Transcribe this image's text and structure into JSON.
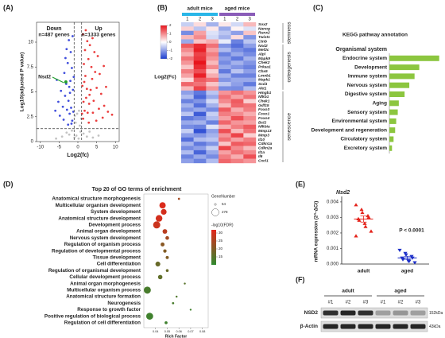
{
  "chart_data": [
    {
      "type": "scatter",
      "panel": "(A)",
      "xlabel": "Log2(fc)",
      "ylabel": "Log10(adjusted P value)",
      "xlim": [
        -11,
        11
      ],
      "ylim": [
        0,
        12
      ],
      "xticks": [
        -10,
        -5,
        0,
        5,
        10
      ],
      "yticks": [
        0,
        2.5,
        5,
        7.5,
        10
      ],
      "down_label": "Down",
      "down_count": "n=487 genes",
      "up_label": "Up",
      "up_count": "n=1333 genes",
      "hline": 1.3,
      "vlines": [
        -1,
        1
      ],
      "highlight": {
        "label": "Nsd2",
        "x": -3.2,
        "y": 6.0,
        "color": "#22a02a"
      },
      "series": [
        {
          "color": "#b8b8b8",
          "x": [
            0.2,
            -0.4,
            0.7,
            -0.9,
            1.5,
            -1.6,
            2.4,
            -2.3,
            0.5,
            -0.6,
            3.1,
            -3.0,
            0.9,
            -0.8,
            4.0,
            -4.2,
            0.3,
            -0.2,
            5.5,
            -5.8
          ],
          "values": [
            0.3,
            0.6,
            1.0,
            0.4,
            0.8,
            1.1,
            0.5,
            0.7,
            1.6,
            1.9,
            1.0,
            0.9,
            2.3,
            2.6,
            0.4,
            0.5,
            3.1,
            2.8,
            0.6,
            0.3
          ]
        },
        {
          "color": "#1f2fd6",
          "x": [
            -1.5,
            -1.8,
            -2.2,
            -2.5,
            -1.3,
            -2.9,
            -3.4,
            -2.0,
            -1.6,
            -3.1,
            -4.0,
            -2.7,
            -1.9,
            -3.6,
            -4.5,
            -1.4,
            -2.4,
            -5.2,
            -3.0,
            -1.2,
            -2.1,
            -4.8,
            -6.0,
            -1.7,
            -3.8,
            -2.6,
            -1.1,
            -5.6,
            -3.3,
            -2.3
          ],
          "values": [
            2.1,
            3.4,
            2.8,
            4.1,
            5.2,
            3.2,
            4.6,
            6.1,
            7.4,
            5.8,
            3.5,
            7.9,
            9.0,
            6.9,
            5.1,
            10.6,
            10.2,
            4.0,
            9.3,
            3.0,
            4.9,
            2.6,
            3.1,
            1.8,
            2.2,
            1.7,
            6.5,
            6.2,
            8.4,
            5.5
          ]
        },
        {
          "color": "#e81c1c",
          "x": [
            1.4,
            1.8,
            2.2,
            2.6,
            1.2,
            3.0,
            3.4,
            2.0,
            1.6,
            3.8,
            4.2,
            2.8,
            1.9,
            4.6,
            5.0,
            1.3,
            2.5,
            5.6,
            3.2,
            1.1,
            6.2,
            7.0,
            2.4,
            3.6,
            4.4,
            5.8,
            1.5,
            2.9,
            6.6,
            8.0,
            4.9,
            3.9,
            2.1,
            1.7,
            7.5,
            5.3,
            9.1,
            6.9,
            3.1,
            4.0
          ],
          "values": [
            2.3,
            3.1,
            4.4,
            2.9,
            5.6,
            3.8,
            5.2,
            6.6,
            7.8,
            6.3,
            4.1,
            8.3,
            9.2,
            7.0,
            5.4,
            10.8,
            10.1,
            3.3,
            9.7,
            2.8,
            4.8,
            3.6,
            5.3,
            7.5,
            9.0,
            6.8,
            4.0,
            1.9,
            2.4,
            3.0,
            2.1,
            10.4,
            11.2,
            6.0,
            5.5,
            8.6,
            2.7,
            7.6,
            4.7,
            2.9
          ]
        }
      ]
    },
    {
      "type": "heatmap",
      "panel": "(B)",
      "legend_title": "Log2(Fc)",
      "vlim": [
        -2,
        2
      ],
      "vticks": [
        2,
        1,
        0,
        -1,
        -2
      ],
      "colors": [
        "#1c3fd0",
        "#ffffff",
        "#e8141c"
      ],
      "column_groups": [
        {
          "name": "adult mice",
          "color": "#29b6e8",
          "columns": [
            "1",
            "2",
            "3"
          ]
        },
        {
          "name": "aged mice",
          "color": "#8a5cb8",
          "columns": [
            "1",
            "2",
            "3"
          ]
        }
      ],
      "row_groups": [
        {
          "name": "stemness",
          "color": "#a0824a",
          "label_color": "#c29a42",
          "genes": [
            "Sox2",
            "Nanog",
            "Runx2",
            "Twist1",
            "Ctnb"
          ],
          "values": [
            [
              -0.5,
              0.3,
              -0.8,
              0.2,
              -0.4,
              0.6
            ],
            [
              0.4,
              -0.6,
              0.2,
              -0.9,
              0.1,
              -0.3
            ],
            [
              -1.2,
              0.8,
              -0.3,
              -0.6,
              -1.0,
              0.5
            ],
            [
              0.6,
              1.0,
              -0.4,
              -0.8,
              0.3,
              -1.1
            ],
            [
              -0.9,
              0.5,
              0.7,
              -0.2,
              -1.3,
              -0.6
            ]
          ]
        },
        {
          "name": "osteogenesis",
          "color": "#e07090",
          "label_color": "#2b4f8a",
          "genes": [
            "Nsd2",
            "Mef2c",
            "Alpl",
            "Mapk9",
            "Chek2",
            "Prkaa1",
            "Cbx5",
            "Lmnb1",
            "Mapk1",
            "Scd1",
            "Akt1"
          ],
          "values": [
            [
              1.4,
              1.8,
              1.2,
              -1.1,
              -1.5,
              -1.0
            ],
            [
              1.0,
              1.9,
              0.8,
              -0.7,
              -1.2,
              -1.4
            ],
            [
              0.7,
              1.6,
              1.1,
              -1.3,
              -0.9,
              -1.2
            ],
            [
              1.2,
              1.7,
              0.9,
              -1.0,
              -1.4,
              -0.8
            ],
            [
              0.9,
              2.0,
              0.6,
              -1.2,
              -0.8,
              -1.1
            ],
            [
              0.5,
              1.8,
              1.0,
              -0.9,
              -1.1,
              -1.3
            ],
            [
              1.1,
              1.5,
              0.4,
              -1.4,
              -0.6,
              -1.0
            ],
            [
              0.8,
              1.9,
              0.7,
              -0.8,
              -1.3,
              -1.3
            ],
            [
              0.3,
              1.4,
              1.2,
              -1.1,
              -0.9,
              -0.9
            ],
            [
              1.3,
              1.2,
              0.5,
              -0.6,
              -1.0,
              -1.4
            ],
            [
              0.6,
              1.6,
              0.9,
              -1.2,
              -1.2,
              -0.7
            ]
          ]
        },
        {
          "name": "senescence",
          "color": "#3a6a9a",
          "label_color": "#2b4f8a",
          "genes": [
            "Hmgb1",
            "Nfkb1",
            "Chek1",
            "Gdf15",
            "Foxo3",
            "Foxo1",
            "Foxo4",
            "Bcl2",
            "Nfkbia",
            "Mmp13",
            "Mmp3",
            "Il10",
            "Cdkn1a",
            "Cdkn2a",
            "Il1a",
            "Il6",
            "Cxcl1"
          ],
          "values": [
            [
              -1.0,
              -1.4,
              -0.6,
              0.9,
              1.2,
              0.9
            ],
            [
              -0.7,
              -1.6,
              -0.9,
              1.2,
              0.8,
              1.2
            ],
            [
              -1.3,
              -1.1,
              -0.4,
              1.0,
              1.4,
              0.4
            ],
            [
              -0.8,
              -1.5,
              -0.8,
              0.6,
              1.3,
              1.2
            ],
            [
              -1.1,
              -0.9,
              -1.2,
              1.4,
              0.7,
              1.1
            ],
            [
              -0.6,
              -1.7,
              -0.5,
              1.1,
              1.0,
              0.7
            ],
            [
              -1.4,
              -1.2,
              -0.7,
              0.8,
              1.5,
              1.0
            ],
            [
              -0.9,
              -0.8,
              -1.3,
              1.3,
              0.9,
              0.8
            ],
            [
              -1.2,
              -1.3,
              -0.3,
              0.7,
              1.1,
              1.4
            ],
            [
              -0.5,
              -1.8,
              -1.0,
              1.5,
              0.6,
              1.2
            ],
            [
              -1.0,
              -1.1,
              -0.8,
              0.9,
              1.6,
              0.4
            ],
            [
              -1.5,
              -0.7,
              -0.6,
              1.2,
              0.8,
              1.1
            ],
            [
              -0.8,
              -1.4,
              -1.1,
              0.5,
              1.4,
              1.3
            ],
            [
              -1.2,
              -1.0,
              -0.5,
              1.6,
              1.0,
              0.6
            ],
            [
              -0.7,
              -1.6,
              -0.9,
              0.8,
              1.2,
              1.0
            ],
            [
              -1.3,
              -0.9,
              -1.2,
              1.1,
              0.7,
              1.5
            ],
            [
              -1.0,
              -1.3,
              -0.7,
              1.3,
              1.1,
              0.9
            ]
          ]
        }
      ]
    },
    {
      "type": "bar",
      "orientation": "horizontal",
      "panel": "(C)",
      "title": "KEGG pathway annotation",
      "color": "#8cc63f",
      "xlim": [
        0,
        100
      ],
      "categories": [
        "Organismal system",
        "Endocrine system",
        "Development",
        "Immune system",
        "Nervous system",
        "Digestive system",
        "Aging",
        "Sensory system",
        "Environmental system",
        "Development and regeneration",
        "Circulatory system",
        "Excretory system"
      ],
      "values": [
        null,
        95,
        57,
        48,
        38,
        29,
        18,
        16,
        13,
        11,
        8,
        5
      ],
      "label_colors": [
        "#b5651d",
        "#222222",
        "#e01b1b",
        "#222222",
        "#222222",
        "#e01b1b",
        "#e01b1b",
        "#222222",
        "#222222",
        "#e01b1b",
        "#222222",
        "#222222"
      ]
    },
    {
      "type": "dot",
      "panel": "(D)",
      "title": "Top 20 of GO terms of enrichment",
      "xlabel": "Rich Factor",
      "xlim": [
        0.03,
        0.085
      ],
      "xticks": [
        0.04,
        0.05,
        0.06,
        0.07,
        0.08
      ],
      "categories": [
        "Anatomical structure morphogenesis",
        "Multicellular organism development",
        "System development",
        "Anatomical structure development",
        "Development process",
        "Animal organ development",
        "Nervous system development",
        "Regulation of organism process",
        "Regulation of developmental process",
        "Tissue development",
        "Cell differentiation",
        "Regulation of organismal development",
        "Cellular development process",
        "Animal organ morphogenesis",
        "Multicellular organism process",
        "Anatomical structure formation",
        "Neurogenesis",
        "Response to growth factor",
        "Positive regulation of biological process",
        "Regulation of cell differentiation"
      ],
      "label_colors": [
        "#111111",
        "#111111",
        "#e01b1b",
        "#111111",
        "#e01b1b",
        "#e01b1b",
        "#111111",
        "#111111",
        "#111111",
        "#e01b1b",
        "#e01b1b",
        "#111111",
        "#111111",
        "#111111",
        "#111111",
        "#111111",
        "#111111",
        "#111111",
        "#111111",
        "#e01b1b"
      ],
      "values": [
        0.06,
        0.046,
        0.047,
        0.043,
        0.041,
        0.048,
        0.05,
        0.046,
        0.048,
        0.05,
        0.042,
        0.05,
        0.044,
        0.065,
        0.033,
        0.058,
        0.055,
        0.07,
        0.035,
        0.049
      ],
      "sizes": [
        60,
        230,
        200,
        250,
        278,
        150,
        110,
        120,
        100,
        90,
        160,
        80,
        140,
        54,
        270,
        56,
        62,
        54,
        265,
        85
      ],
      "fdr": [
        24,
        31,
        30,
        30,
        29,
        27,
        24,
        21,
        20,
        20,
        17,
        17,
        16,
        15,
        13,
        14,
        13,
        12,
        12,
        12
      ],
      "size_title": "GeneNumber",
      "size_ticks": [
        54,
        278
      ],
      "color_title": "-log10(FDR)",
      "clim": [
        10,
        32
      ],
      "cticks": [
        30,
        25,
        20,
        15
      ],
      "colors": [
        "#2f8a2f",
        "#e3261b"
      ]
    },
    {
      "type": "strip",
      "panel": "(E)",
      "title": "Nsd2",
      "ylabel": "mRNA expression (2^-ΔCt)",
      "annotation": "P < 0.0001",
      "categories": [
        "adult",
        "aged"
      ],
      "ylim": [
        0,
        0.0042
      ],
      "yticks": [
        {
          "value": 0,
          "label": "0.000"
        },
        {
          "value": 0.001,
          "label": "0.001"
        },
        {
          "value": 0.002,
          "label": "0.002"
        },
        {
          "value": 0.003,
          "label": "0.003"
        },
        {
          "value": 0.004,
          "label": "0.004"
        }
      ],
      "series": [
        {
          "color": "#e4231b",
          "marker": "triangle",
          "values": [
            0.0038,
            0.0035,
            0.0033,
            0.0031,
            0.003,
            0.0029,
            0.0028,
            0.0026,
            0.0024,
            0.0021,
            0.0018
          ],
          "mean": 0.0029,
          "sem": 0.0002
        },
        {
          "color": "#1c2fc8",
          "marker": "triangle-down",
          "values": [
            0.0009,
            0.0007,
            0.0006,
            0.0005,
            0.0004,
            0.0004,
            0.0003,
            0.0002,
            0.0002,
            0.0001
          ],
          "mean": 0.0004,
          "sem": 0.0001
        }
      ]
    },
    {
      "type": "blot",
      "panel": "(F)",
      "groups": [
        {
          "name": "adult",
          "lanes": [
            "#1",
            "#2",
            "#3"
          ]
        },
        {
          "name": "aged",
          "lanes": [
            "#1",
            "#2",
            "#3"
          ]
        }
      ],
      "rows": [
        {
          "name": "NSD2",
          "size": "152kDa",
          "values": [
            0.85,
            0.9,
            0.85,
            0.3,
            0.35,
            0.3
          ]
        },
        {
          "name": "β-Actin",
          "size": "43kDa",
          "values": [
            0.9,
            0.9,
            0.9,
            0.9,
            0.9,
            0.9
          ]
        }
      ]
    }
  ]
}
